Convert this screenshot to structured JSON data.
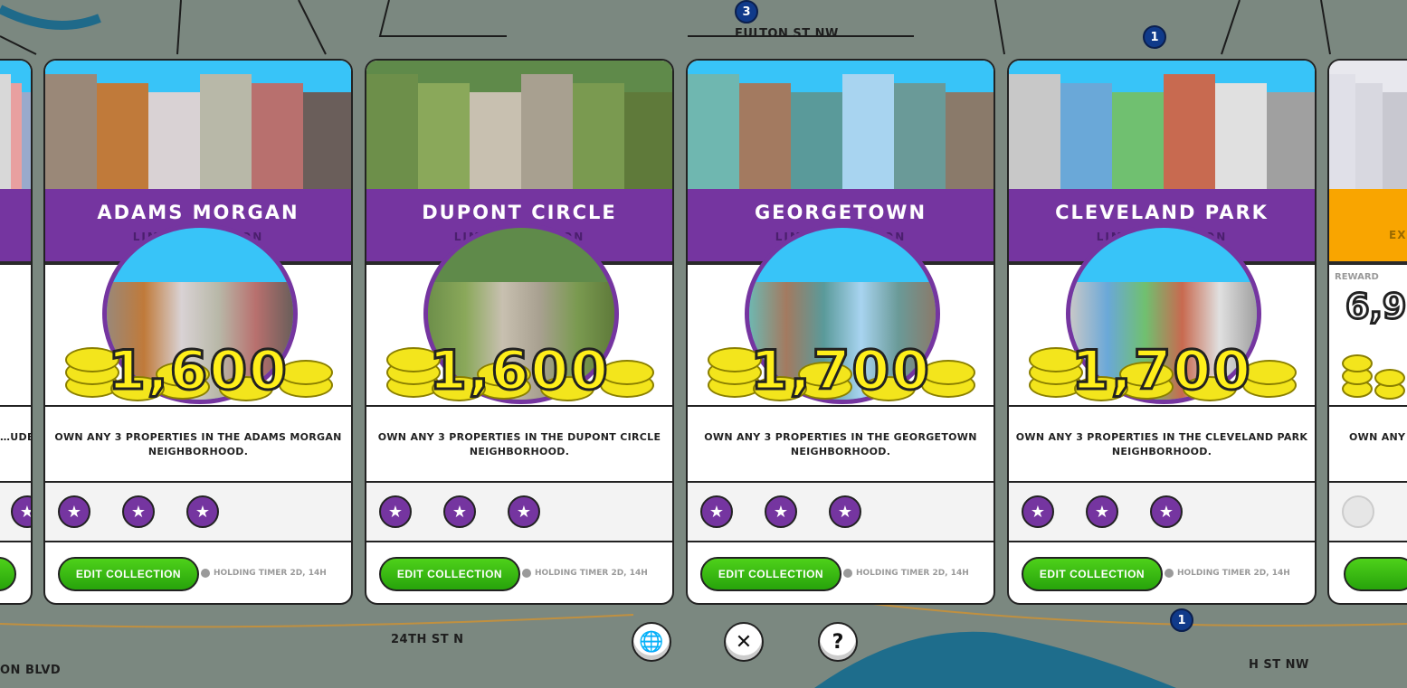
{
  "map": {
    "labels": [
      "FULTON ST NW",
      "24TH ST N",
      "ON BLVD",
      "H ST NW"
    ],
    "pins": [
      "3",
      "1",
      "1"
    ]
  },
  "cards": [
    {
      "title": "",
      "subtitle": "",
      "amount": "",
      "description": "…UDE",
      "stars": 3,
      "partial": "left"
    },
    {
      "title": "ADAMS MORGAN",
      "subtitle": "LIMITED EDITION",
      "amount": "1,600",
      "description": "OWN ANY 3 PROPERTIES IN THE ADAMS MORGAN NEIGHBORHOOD.",
      "stars": 3,
      "button": "EDIT COLLECTION",
      "timer": "HOLDING TIMER 2D, 14H",
      "sky": "#38c4f8"
    },
    {
      "title": "DUPONT CIRCLE",
      "subtitle": "LIMITED EDITION",
      "amount": "1,600",
      "description": "OWN ANY 3 PROPERTIES IN THE DUPONT CIRCLE NEIGHBORHOOD.",
      "stars": 3,
      "button": "EDIT COLLECTION",
      "timer": "HOLDING TIMER 2D, 14H",
      "sky": "#5f8a4a"
    },
    {
      "title": "GEORGETOWN",
      "subtitle": "LIMITED EDITION",
      "amount": "1,700",
      "description": "OWN ANY 3 PROPERTIES IN THE GEORGETOWN NEIGHBORHOOD.",
      "stars": 3,
      "button": "EDIT COLLECTION",
      "timer": "HOLDING TIMER 2D, 14H",
      "sky": "#38c4f8"
    },
    {
      "title": "CLEVELAND PARK",
      "subtitle": "LIMITED EDITION",
      "amount": "1,700",
      "description": "OWN ANY 3 PROPERTIES IN THE CLEVELAND PARK NEIGHBORHOOD.",
      "stars": 3,
      "button": "EDIT COLLECTION",
      "timer": "HOLDING TIMER 2D, 14H",
      "sky": "#38c4f8"
    },
    {
      "title": "",
      "subtitle": "EX",
      "reward_label": "REWARD",
      "amount": "6,9",
      "description": "OWN ANY",
      "stars": 0,
      "partial": "right"
    }
  ],
  "colors": {
    "purple": "#7535a0",
    "orange": "#f9a500",
    "green": "#2fb10f",
    "coin": "#f3e51c"
  },
  "controls": [
    {
      "icon": "globe-icon",
      "glyph": "🌐"
    },
    {
      "icon": "close-icon",
      "glyph": "✕"
    },
    {
      "icon": "help-icon",
      "glyph": "?"
    }
  ]
}
